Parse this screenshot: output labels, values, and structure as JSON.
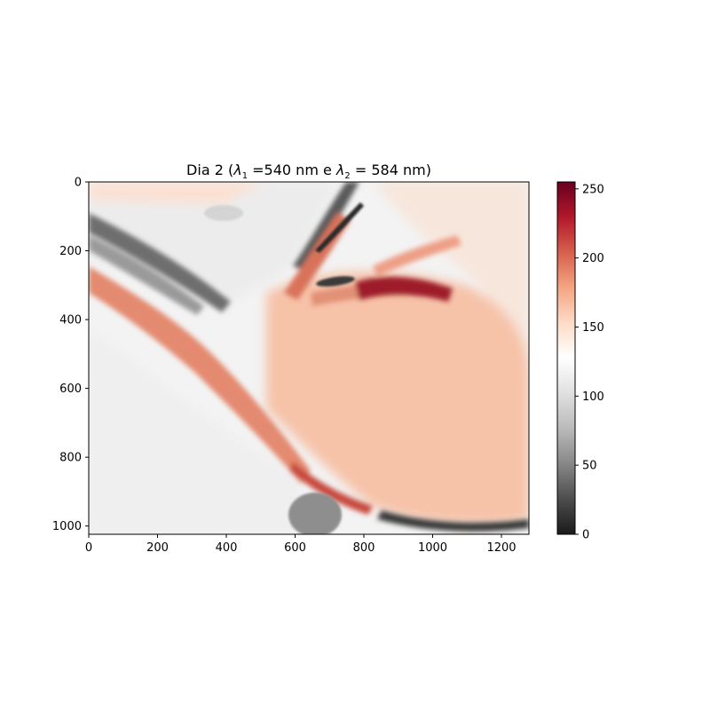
{
  "chart_data": {
    "type": "heatmap",
    "title_parts": [
      "Dia 2 (",
      "λ",
      "1",
      " =540 nm e ",
      "λ",
      "2",
      " = 584 nm)"
    ],
    "image_width": 1280,
    "image_height": 1024,
    "xlim": [
      0,
      1280
    ],
    "ylim": [
      1024,
      0
    ],
    "x_ticks": [
      0,
      200,
      400,
      600,
      800,
      1000,
      1200
    ],
    "y_ticks": [
      0,
      200,
      400,
      600,
      800,
      1000
    ],
    "x_tick_labels": [
      "0",
      "200",
      "400",
      "600",
      "800",
      "1000",
      "1200"
    ],
    "y_tick_labels": [
      "0",
      "200",
      "400",
      "600",
      "800",
      "1000"
    ],
    "colormap": "RdGy_r",
    "colorbar": {
      "range": [
        0,
        255
      ],
      "ticks": [
        0,
        50,
        100,
        150,
        200,
        250
      ],
      "tick_labels": [
        "0",
        "50",
        "100",
        "150",
        "200",
        "250"
      ],
      "colors": [
        "#1a1a1a",
        "#4d4d4d",
        "#878787",
        "#bababa",
        "#e0e0e0",
        "#ffffff",
        "#fddbc7",
        "#f4a582",
        "#d6604d",
        "#b2182b",
        "#67001f"
      ]
    },
    "background_value": 138
  }
}
